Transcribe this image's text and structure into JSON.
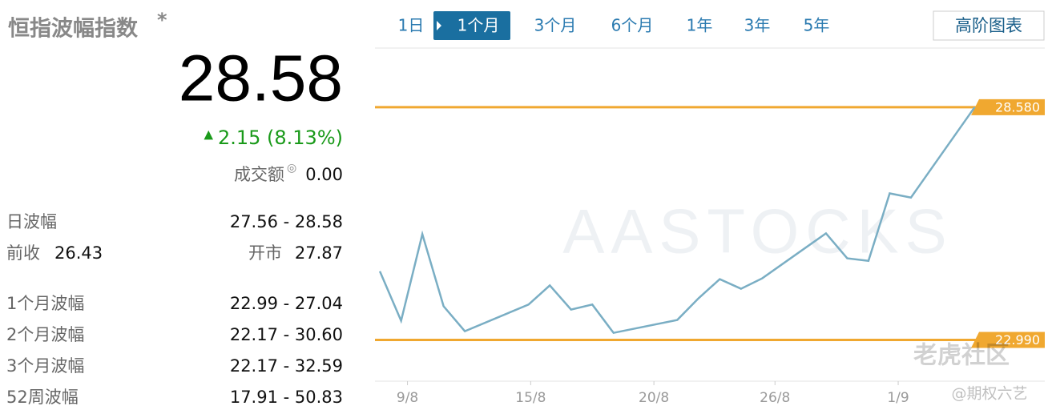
{
  "header": {
    "title": "恒指波幅指数",
    "title_mark": "*"
  },
  "quote": {
    "last": "28.58",
    "change_arrow": "▲",
    "change": "2.15 (8.13%)",
    "turnover_label": "成交额",
    "turnover_icon": "◎",
    "turnover": "0.00"
  },
  "day_range": {
    "label": "日波幅",
    "value": "27.56 - 28.58"
  },
  "prev_open": {
    "prev_label": "前收",
    "prev_value": "26.43",
    "open_label": "开市",
    "open_value": "27.87"
  },
  "ranges": [
    {
      "label": "1个月波幅",
      "value": "22.99 - 27.04"
    },
    {
      "label": "2个月波幅",
      "value": "22.17 - 30.60"
    },
    {
      "label": "3个月波幅",
      "value": "22.17 - 32.59"
    },
    {
      "label": "52周波幅",
      "value": "17.91 - 50.83"
    }
  ],
  "tabs": [
    "1日",
    "1个月",
    "3个月",
    "6个月",
    "1年",
    "3年",
    "5年"
  ],
  "active_tab": 1,
  "advanced_button": "高阶图表",
  "chart_data": {
    "type": "line",
    "color": "#7aaec4",
    "x": [
      0,
      1,
      2,
      3,
      4,
      7,
      8,
      9,
      10,
      11,
      14,
      15,
      16,
      17,
      18,
      21,
      22,
      23,
      24,
      25,
      28
    ],
    "values": [
      24.64,
      23.45,
      25.53,
      23.8,
      23.2,
      23.84,
      24.3,
      23.72,
      23.84,
      23.16,
      23.47,
      23.99,
      24.45,
      24.22,
      24.47,
      25.55,
      24.95,
      24.89,
      26.51,
      26.41,
      28.58
    ],
    "xlim": [
      -0.23,
      31.3
    ],
    "ylim": [
      22,
      30
    ],
    "xticks": [
      {
        "value": 1.3,
        "label": "9/8"
      },
      {
        "value": 7.1,
        "label": "15/8"
      },
      {
        "value": 12.9,
        "label": "20/8"
      },
      {
        "value": 18.6,
        "label": "26/8"
      },
      {
        "value": 24.4,
        "label": "1/9"
      }
    ],
    "reference_lines": [
      {
        "value": 28.58,
        "label": "28.580"
      },
      {
        "value": 22.99,
        "label": "22.990"
      }
    ],
    "reference_color": "#f0a830",
    "watermark": "AASTOCKS"
  },
  "overlay": {
    "brand": "老虎社区",
    "credit": "@期权六艺"
  }
}
